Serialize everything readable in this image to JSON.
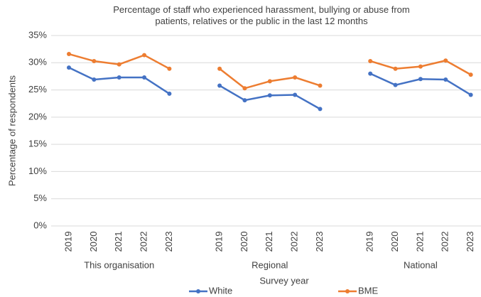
{
  "chart_data": {
    "type": "line",
    "title": "Percentage of staff who experienced harassment, bullying or abuse from patients, relatives or the public in the last 12 months",
    "categories": [
      "2019",
      "2020",
      "2021",
      "2022",
      "2023",
      null,
      "2019",
      "2020",
      "2021",
      "2022",
      "2023",
      null,
      "2019",
      "2020",
      "2021",
      "2022",
      "2023"
    ],
    "groups": [
      "This organisation",
      "Regional",
      "National"
    ],
    "series": [
      {
        "name": "White",
        "color": "#4472c4",
        "values": [
          29.1,
          26.9,
          27.3,
          27.3,
          24.3,
          null,
          25.8,
          23.1,
          24.0,
          24.1,
          21.5,
          null,
          28.0,
          25.9,
          27.0,
          26.9,
          24.1
        ]
      },
      {
        "name": "BME",
        "color": "#ed7d31",
        "values": [
          31.6,
          30.3,
          29.7,
          31.4,
          28.9,
          null,
          28.9,
          25.3,
          26.6,
          27.3,
          25.8,
          null,
          30.3,
          28.9,
          29.3,
          30.4,
          27.8
        ]
      }
    ],
    "ylabel": "Percentage of respondents",
    "xlabel": "Survey year",
    "ylim": [
      0,
      35
    ],
    "yticks": [
      {
        "value": 0,
        "label": "0%"
      },
      {
        "value": 5,
        "label": "5%"
      },
      {
        "value": 10,
        "label": "10%"
      },
      {
        "value": 15,
        "label": "15%"
      },
      {
        "value": 20,
        "label": "20%"
      },
      {
        "value": 25,
        "label": "25%"
      },
      {
        "value": 30,
        "label": "30%"
      },
      {
        "value": 35,
        "label": "35%"
      }
    ],
    "grid": true,
    "legend": "bottom"
  }
}
